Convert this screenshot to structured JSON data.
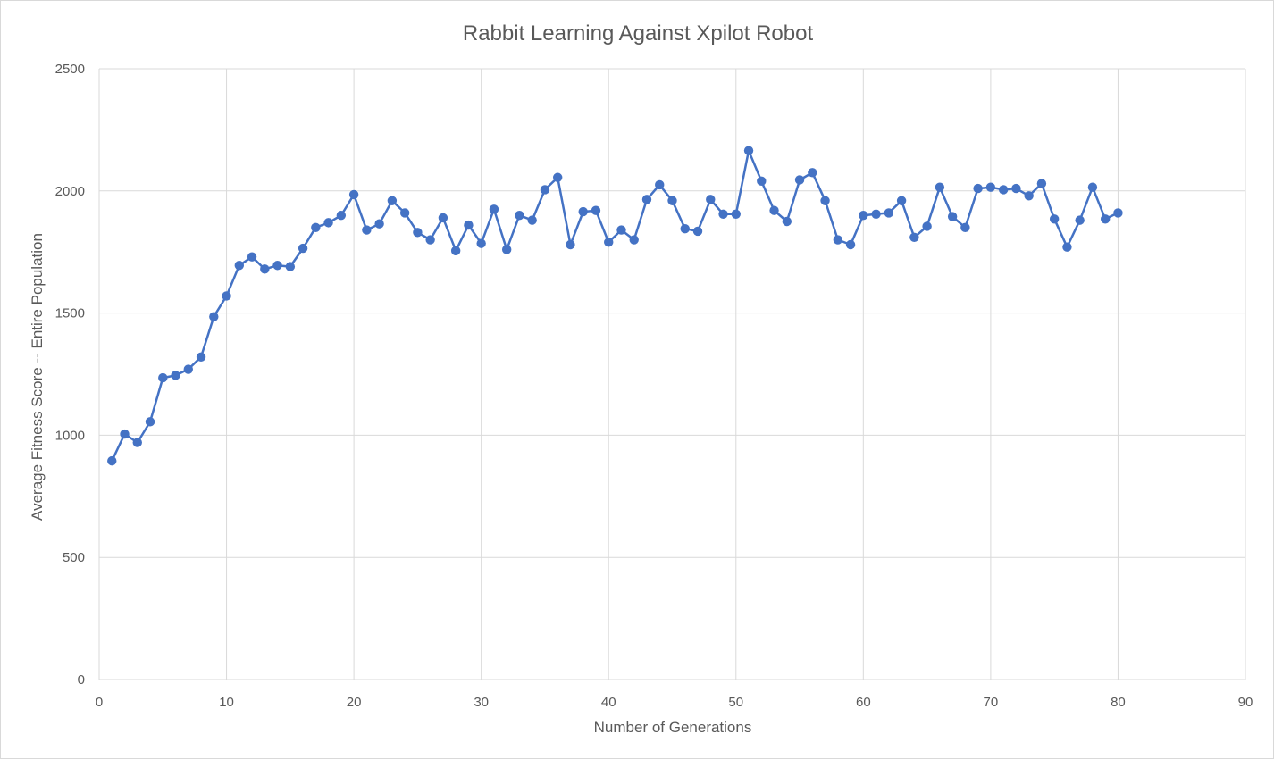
{
  "chart_data": {
    "type": "scatter",
    "title": "Rabbit Learning Against Xpilot Robot",
    "xlabel": "Number of Generations",
    "ylabel": "Average Fitness Score -- Entire Population",
    "xlim": [
      0,
      90
    ],
    "ylim": [
      0,
      2500
    ],
    "xticks": [
      0,
      10,
      20,
      30,
      40,
      50,
      60,
      70,
      80,
      90
    ],
    "yticks": [
      0,
      500,
      1000,
      1500,
      2000,
      2500
    ],
    "grid": true,
    "legend": "none",
    "markers": true,
    "lines": true,
    "colors": {
      "series": "#4472c4",
      "grid": "#d9d9d9",
      "text": "#595959"
    },
    "series": [
      {
        "x": [
          1,
          2,
          3,
          4,
          5,
          6,
          7,
          8,
          9,
          10,
          11,
          12,
          13,
          14,
          15,
          16,
          17,
          18,
          19,
          20,
          21,
          22,
          23,
          24,
          25,
          26,
          27,
          28,
          29,
          30,
          31,
          32,
          33,
          34,
          35,
          36,
          37,
          38,
          39,
          40,
          41,
          42,
          43,
          44,
          45,
          46,
          47,
          48,
          49,
          50,
          51,
          52,
          53,
          54,
          55,
          56,
          57,
          58,
          59,
          60,
          61,
          62,
          63,
          64,
          65,
          66,
          67,
          68,
          69,
          70,
          71,
          72,
          73,
          74,
          75,
          76,
          77,
          78,
          79,
          80
        ],
        "y": [
          895,
          1005,
          970,
          1055,
          1235,
          1245,
          1270,
          1320,
          1485,
          1570,
          1695,
          1730,
          1680,
          1695,
          1690,
          1765,
          1850,
          1870,
          1900,
          1985,
          1840,
          1865,
          1960,
          1910,
          1830,
          1800,
          1890,
          1755,
          1860,
          1785,
          1925,
          1760,
          1900,
          1880,
          2005,
          2055,
          1780,
          1915,
          1920,
          1790,
          1840,
          1800,
          1965,
          2025,
          1960,
          1845,
          1835,
          1965,
          1905,
          1905,
          2165,
          2040,
          1920,
          1875,
          2045,
          2075,
          1960,
          1800,
          1780,
          1900,
          1905,
          1910,
          1960,
          1810,
          1855,
          2015,
          1895,
          1850,
          2010,
          2015,
          2005,
          2010,
          1980,
          2030,
          1885,
          1770,
          1880,
          2015,
          1885,
          1910
        ]
      }
    ]
  }
}
